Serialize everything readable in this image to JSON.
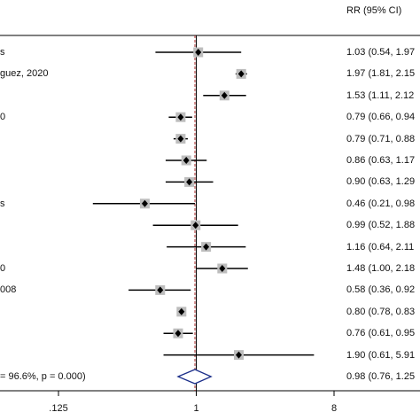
{
  "chart_data": {
    "type": "forest",
    "column_header": "RR (95% CI)",
    "x_scale": "log",
    "x_ticks": [
      {
        "value": 0.125,
        "label": ".125"
      },
      {
        "value": 1,
        "label": "1"
      },
      {
        "value": 8,
        "label": "8"
      }
    ],
    "xlim": [
      0.125,
      8
    ],
    "rows": [
      {
        "label": "s",
        "rr": 1.03,
        "lo": 0.54,
        "hi": 1.97,
        "ci_text": "1.03 (0.54, 1.97"
      },
      {
        "label": "guez, 2020",
        "rr": 1.97,
        "lo": 1.81,
        "hi": 2.15,
        "ci_text": "1.97 (1.81, 2.15"
      },
      {
        "label": "",
        "rr": 1.53,
        "lo": 1.11,
        "hi": 2.12,
        "ci_text": "1.53 (1.11, 2.12"
      },
      {
        "label": "0",
        "rr": 0.79,
        "lo": 0.66,
        "hi": 0.94,
        "ci_text": "0.79 (0.66, 0.94"
      },
      {
        "label": "",
        "rr": 0.79,
        "lo": 0.71,
        "hi": 0.88,
        "ci_text": "0.79 (0.71, 0.88"
      },
      {
        "label": "",
        "rr": 0.86,
        "lo": 0.63,
        "hi": 1.17,
        "ci_text": "0.86 (0.63, 1.17"
      },
      {
        "label": "",
        "rr": 0.9,
        "lo": 0.63,
        "hi": 1.29,
        "ci_text": "0.90 (0.63, 1.29"
      },
      {
        "label": "s",
        "rr": 0.46,
        "lo": 0.21,
        "hi": 0.98,
        "ci_text": "0.46 (0.21, 0.98"
      },
      {
        "label": "",
        "rr": 0.99,
        "lo": 0.52,
        "hi": 1.88,
        "ci_text": "0.99 (0.52, 1.88"
      },
      {
        "label": "",
        "rr": 1.16,
        "lo": 0.64,
        "hi": 2.11,
        "ci_text": "1.16 (0.64, 2.11"
      },
      {
        "label": "0",
        "rr": 1.48,
        "lo": 1.0,
        "hi": 2.18,
        "ci_text": "1.48 (1.00, 2.18"
      },
      {
        "label": "008",
        "rr": 0.58,
        "lo": 0.36,
        "hi": 0.92,
        "ci_text": "0.58 (0.36, 0.92"
      },
      {
        "label": "",
        "rr": 0.8,
        "lo": 0.78,
        "hi": 0.83,
        "ci_text": "0.80 (0.78, 0.83"
      },
      {
        "label": "",
        "rr": 0.76,
        "lo": 0.61,
        "hi": 0.95,
        "ci_text": "0.76 (0.61, 0.95"
      },
      {
        "label": "",
        "rr": 1.9,
        "lo": 0.61,
        "hi": 5.91,
        "ci_text": "1.90 (0.61, 5.91"
      }
    ],
    "overall": {
      "label": "= 96.6%, p = 0.000)",
      "rr": 0.98,
      "lo": 0.76,
      "hi": 1.25,
      "ci_text": "0.98 (0.76, 1.25"
    },
    "colors": {
      "line": "#000000",
      "box": "#bdbdbd",
      "null_line": "#000000",
      "overall_line": "#b03030",
      "diamond": "#1c2f8a"
    }
  }
}
